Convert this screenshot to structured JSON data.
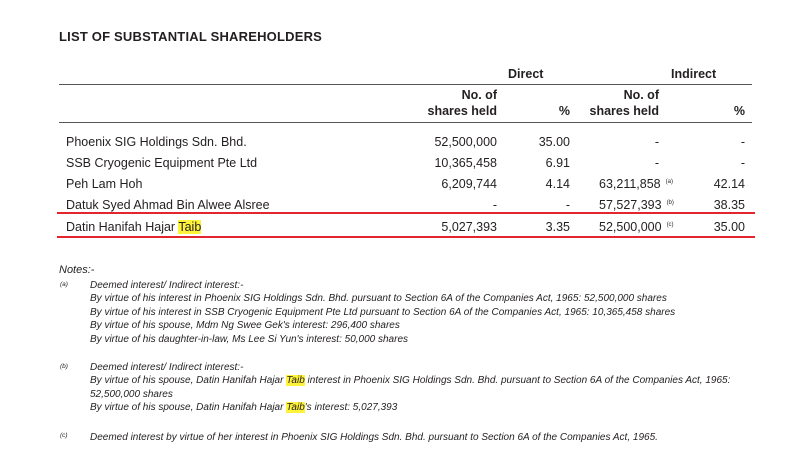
{
  "title": "LIST OF SUBSTANTIAL SHAREHOLDERS",
  "groups": {
    "direct": "Direct",
    "indirect": "Indirect"
  },
  "headers": {
    "direct_shares_line1": "No. of",
    "direct_shares_line2": "shares held",
    "direct_pct": "%",
    "indirect_shares_line1": "No. of",
    "indirect_shares_line2": "shares held",
    "indirect_pct": "%"
  },
  "rows": [
    {
      "name": "Phoenix SIG Holdings Sdn. Bhd.",
      "direct_shares": "52,500,000",
      "direct_pct": "35.00",
      "indirect_shares": "-",
      "indirect_note": "",
      "indirect_pct": "-"
    },
    {
      "name": "SSB Cryogenic Equipment Pte Ltd",
      "direct_shares": "10,365,458",
      "direct_pct": "6.91",
      "indirect_shares": "-",
      "indirect_note": "",
      "indirect_pct": "-"
    },
    {
      "name": "Peh Lam Hoh",
      "direct_shares": "6,209,744",
      "direct_pct": "4.14",
      "indirect_shares": "63,211,858",
      "indirect_note": "(a)",
      "indirect_pct": "42.14"
    },
    {
      "name": "Datuk Syed Ahmad Bin Alwee Alsree",
      "direct_shares": "-",
      "direct_pct": "-",
      "indirect_shares": "57,527,393",
      "indirect_note": "(b)",
      "indirect_pct": "38.35"
    },
    {
      "name_prefix": "Datin Hanifah Hajar ",
      "name_highlight": "Taib",
      "direct_shares": "5,027,393",
      "direct_pct": "3.35",
      "indirect_shares": "52,500,000",
      "indirect_note": "(c)",
      "indirect_pct": "35.00"
    }
  ],
  "notes": {
    "title": "Notes:-",
    "a": {
      "mark": "(a)",
      "heading": "Deemed interest/ Indirect interest:-",
      "lines": [
        "By virtue of his interest in Phoenix SIG Holdings Sdn. Bhd. pursuant to Section 6A of the Companies Act, 1965: 52,500,000 shares",
        "By virtue of his interest in SSB Cryogenic Equipment Pte Ltd pursuant to Section 6A of the Companies Act, 1965: 10,365,458 shares",
        "By virtue of his spouse, Mdm Ng Swee Gek's interest: 296,400 shares",
        "By virtue of his daughter-in-law, Ms Lee Si Yun's interest: 50,000 shares"
      ]
    },
    "b": {
      "mark": "(b)",
      "heading": "Deemed interest/ Indirect interest:-",
      "line1_prefix": "By virtue of his spouse, Datin Hanifah Hajar ",
      "line1_highlight": "Taib",
      "line1_suffix": " interest in Phoenix SIG Holdings Sdn. Bhd. pursuant to Section 6A of the Companies Act, 1965:",
      "line2": "52,500,000 shares",
      "line3_prefix": "By virtue of his spouse, Datin Hanifah Hajar ",
      "line3_highlight": "Taib",
      "line3_suffix": "'s interest: 5,027,393"
    },
    "c": {
      "mark": "(c)",
      "text": "Deemed interest by virtue of her interest in Phoenix SIG Holdings Sdn. Bhd. pursuant to Section 6A of the Companies Act, 1965."
    }
  }
}
